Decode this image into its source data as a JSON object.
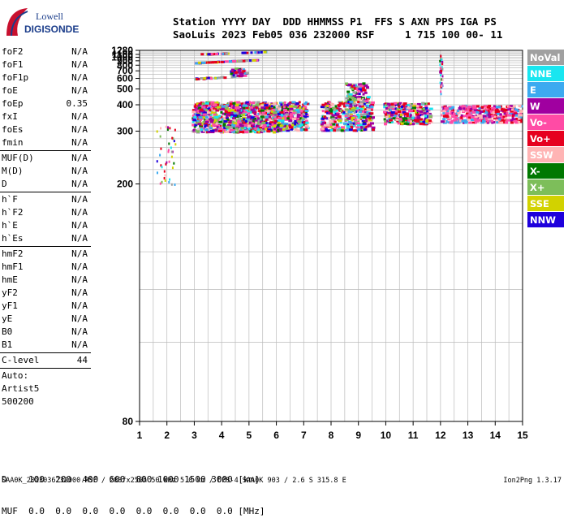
{
  "logo": {
    "line1": "Lowell",
    "line2": "DIGISONDE"
  },
  "header": {
    "line1": "Station YYYY DAY  DDD HHMMSS P1  FFS S AXN PPS IGA PS",
    "line2": "SaoLuis 2023 Feb05 036 232000 RSF     1 715 100 00- 11"
  },
  "params": [
    {
      "name": "foF2",
      "value": "N/A"
    },
    {
      "name": "foF1",
      "value": "N/A"
    },
    {
      "name": "foF1p",
      "value": "N/A"
    },
    {
      "name": "foE",
      "value": "N/A"
    },
    {
      "name": "foEp",
      "value": "0.35"
    },
    {
      "name": "fxI",
      "value": "N/A"
    },
    {
      "name": "foEs",
      "value": "N/A"
    },
    {
      "name": "fmin",
      "value": "N/A"
    },
    {
      "sep": true
    },
    {
      "name": "MUF(D)",
      "value": "N/A"
    },
    {
      "name": "M(D)",
      "value": "N/A"
    },
    {
      "name": "D",
      "value": "N/A"
    },
    {
      "sep": true
    },
    {
      "name": "h`F",
      "value": "N/A"
    },
    {
      "name": "h`F2",
      "value": "N/A"
    },
    {
      "name": "h`E",
      "value": "N/A"
    },
    {
      "name": "h`Es",
      "value": "N/A"
    },
    {
      "sep": true
    },
    {
      "name": "hmF2",
      "value": "N/A"
    },
    {
      "name": "hmF1",
      "value": "N/A"
    },
    {
      "name": "hmE",
      "value": "N/A"
    },
    {
      "name": "yF2",
      "value": "N/A"
    },
    {
      "name": "yF1",
      "value": "N/A"
    },
    {
      "name": "yE",
      "value": "N/A"
    },
    {
      "name": "B0",
      "value": "N/A"
    },
    {
      "name": "B1",
      "value": "N/A"
    },
    {
      "sep": true
    },
    {
      "name": "C-level",
      "value": "44"
    },
    {
      "sep": true
    }
  ],
  "auto": [
    "Auto:",
    "Artist5",
    "500200"
  ],
  "legend": [
    {
      "label": "NoVal",
      "color": "#a0a0a0"
    },
    {
      "label": "NNE",
      "color": "#19e6f0"
    },
    {
      "label": "E",
      "color": "#3caaf0"
    },
    {
      "label": "W",
      "color": "#a000a0"
    },
    {
      "label": "Vo-",
      "color": "#ff4ba5"
    },
    {
      "label": "Vo+",
      "color": "#e6001e"
    },
    {
      "label": "SSW",
      "color": "#ffb4b4"
    },
    {
      "label": "X-",
      "color": "#007800"
    },
    {
      "label": "X+",
      "color": "#7dbe5a"
    },
    {
      "label": "SSE",
      "color": "#d2d200"
    },
    {
      "label": "NNW",
      "color": "#1e00dc"
    }
  ],
  "dmuf": {
    "line1": "D    100  200  400  600  800 1000 1500 3000 [km]",
    "line2": "MUF  0.0  0.0  0.0  0.0  0.0  0.0  0.0  0.0 [MHz]"
  },
  "footer": "SAA0K_2023036232000.RSF / 280fx256h 50 kHz 5.0 km / DPS-4 SAA0K 903 / 2.6 S 315.8 E",
  "version": "Ion2Png 1.3.17",
  "chart_data": {
    "type": "scatter",
    "x_ticks": [
      1,
      2,
      3,
      4,
      5,
      6,
      7,
      8,
      9,
      10,
      11,
      12,
      13,
      14,
      15
    ],
    "y_ticks": [
      80,
      200,
      300,
      400,
      500,
      600,
      700,
      800,
      900,
      1000,
      1100,
      1280
    ],
    "y_scale": "reciprocal",
    "xlim": [
      1,
      15
    ],
    "ylim": [
      80,
      1280
    ],
    "grid": true,
    "traces": [
      {
        "x0": 2.9,
        "x1": 6.0,
        "y": [
          300,
          420
        ],
        "color": "mix",
        "density": 900
      },
      {
        "x0": 6.0,
        "x1": 7.1,
        "y": [
          305,
          420
        ],
        "color": "mix",
        "density": 250
      },
      {
        "x0": 7.6,
        "x1": 9.5,
        "y": [
          305,
          420
        ],
        "color": "mix",
        "density": 350
      },
      {
        "x0": 9.9,
        "x1": 11.6,
        "y": [
          325,
          415
        ],
        "color": "mix",
        "density": 300
      },
      {
        "x0": 12.0,
        "x1": 14.9,
        "y": [
          330,
          400
        ],
        "color": "pink",
        "density": 350
      },
      {
        "x0": 8.5,
        "x1": 9.3,
        "y": [
          420,
          560
        ],
        "color": "mix",
        "density": 90
      },
      {
        "x0": 1.6,
        "x1": 2.3,
        "y": [
          200,
          320
        ],
        "color": "vertical",
        "density": 40
      },
      {
        "x0": 3.0,
        "x1": 5.3,
        "line_y0": 870,
        "line_y1": 950,
        "color": "line",
        "density": 70
      },
      {
        "x0": 3.0,
        "x1": 4.6,
        "line_y0": 605,
        "line_y1": 640,
        "color": "line",
        "density": 30
      },
      {
        "x0": 3.2,
        "x1": 4.2,
        "line_y0": 1150,
        "line_y1": 1180,
        "color": "line",
        "density": 20
      },
      {
        "x0": 4.7,
        "x1": 5.6,
        "line_y0": 1210,
        "line_y1": 1250,
        "color": "line",
        "density": 15
      },
      {
        "x0": 4.3,
        "x1": 4.9,
        "y": [
          640,
          760
        ],
        "color": "mix",
        "density": 40
      },
      {
        "x0": 11.95,
        "x1": 12.05,
        "y": [
          440,
          1120
        ],
        "color": "vertical",
        "density": 45
      }
    ]
  }
}
